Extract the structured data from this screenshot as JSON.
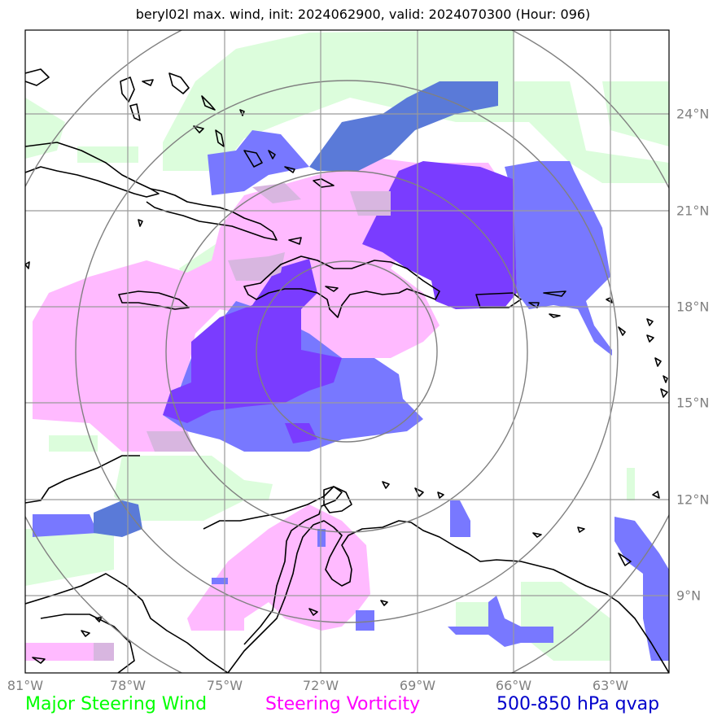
{
  "title": "beryl02l max. wind, init: 2024062900, valid: 2024070300 (Hour: 096)",
  "x_axis": {
    "tick_labels": [
      "81°W",
      "78°W",
      "75°W",
      "72°W",
      "69°W",
      "66°W",
      "63°W"
    ]
  },
  "y_axis": {
    "tick_labels": [
      "24°N",
      "21°N",
      "18°N",
      "15°N",
      "12°N",
      "9°N"
    ]
  },
  "legend": {
    "wind": {
      "label": "Major Steering Wind",
      "color": "#00ff00"
    },
    "vorticity": {
      "label": "Steering Vorticity",
      "color": "#ff00ff"
    },
    "qvap": {
      "label": "500-850 hPa qvap",
      "color": "#0000cc"
    }
  },
  "colors": {
    "wind_fill": "#dcfddc",
    "vorticity_fill": "#ffbaff",
    "qvap_light": "#7878ff",
    "qvap_dark": "#7a3cff",
    "overlap": "#d8b6e0",
    "grid": "#9a9a9a",
    "range_rings": "#808080",
    "coast": "#000000"
  },
  "storm_center": {
    "lon": -71.2,
    "lat": 16.8
  },
  "range_ring_count": 4,
  "axis_ranges": {
    "lon": [
      -81,
      -61.2
    ],
    "lat": [
      7.0,
      27.2
    ]
  }
}
